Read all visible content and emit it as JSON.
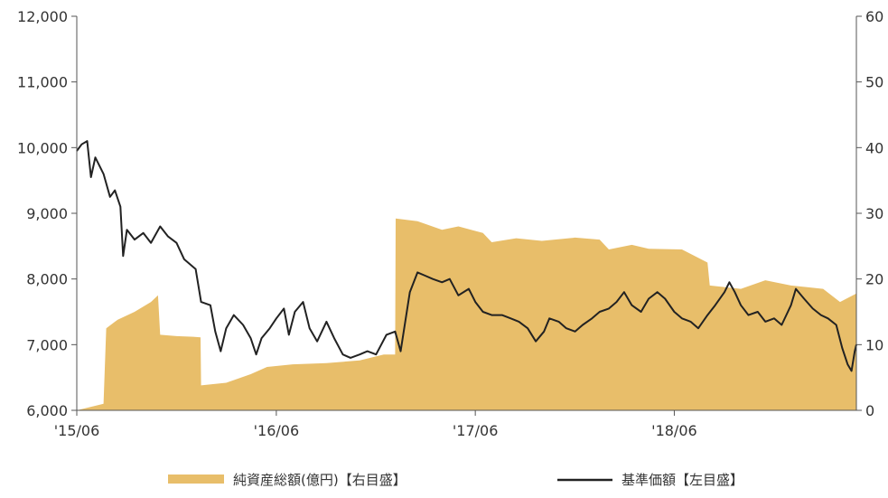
{
  "chart_data": {
    "type": "area+line",
    "title": "",
    "xlabel": "",
    "ylabel_left": "",
    "ylabel_right": "",
    "x_ticks": [
      "'15/06",
      "'16/06",
      "'17/06",
      "'18/06"
    ],
    "left_axis": {
      "ticks": [
        "6,000",
        "7,000",
        "8,000",
        "9,000",
        "10,000",
        "11,000",
        "12,000"
      ],
      "ylim": [
        6000,
        12000
      ]
    },
    "right_axis": {
      "ticks": [
        "0",
        "10",
        "20",
        "30",
        "40",
        "50",
        "60"
      ],
      "ylim": [
        0,
        60
      ]
    },
    "grid": false,
    "legend_position": "bottom",
    "series": [
      {
        "name": "純資産総額(億円)【右目盛】",
        "kind": "area",
        "axis": "right",
        "color": "#E8BE6A",
        "points": [
          {
            "x": "2015-06-01",
            "y": 0
          },
          {
            "x": "2015-07-20",
            "y": 1
          },
          {
            "x": "2015-07-25",
            "y": 12.5
          },
          {
            "x": "2015-08-15",
            "y": 13.8
          },
          {
            "x": "2015-09-15",
            "y": 15
          },
          {
            "x": "2015-10-15",
            "y": 16.5
          },
          {
            "x": "2015-10-28",
            "y": 17.5
          },
          {
            "x": "2015-11-01",
            "y": 11.5
          },
          {
            "x": "2015-12-01",
            "y": 11.3
          },
          {
            "x": "2016-01-01",
            "y": 11.2
          },
          {
            "x": "2016-01-14",
            "y": 11.1
          },
          {
            "x": "2016-01-15",
            "y": 3.8
          },
          {
            "x": "2016-03-01",
            "y": 4.2
          },
          {
            "x": "2016-04-15",
            "y": 5.5
          },
          {
            "x": "2016-05-15",
            "y": 6.6
          },
          {
            "x": "2016-07-01",
            "y": 7
          },
          {
            "x": "2016-09-01",
            "y": 7.2
          },
          {
            "x": "2016-11-01",
            "y": 7.6
          },
          {
            "x": "2016-12-15",
            "y": 8.5
          },
          {
            "x": "2017-01-05",
            "y": 8.5
          },
          {
            "x": "2017-01-06",
            "y": 29.2
          },
          {
            "x": "2017-02-15",
            "y": 28.8
          },
          {
            "x": "2017-04-01",
            "y": 27.5
          },
          {
            "x": "2017-05-01",
            "y": 28
          },
          {
            "x": "2017-06-15",
            "y": 27
          },
          {
            "x": "2017-07-01",
            "y": 25.6
          },
          {
            "x": "2017-08-15",
            "y": 26.2
          },
          {
            "x": "2017-10-01",
            "y": 25.8
          },
          {
            "x": "2017-12-01",
            "y": 26.3
          },
          {
            "x": "2018-01-15",
            "y": 26
          },
          {
            "x": "2018-02-01",
            "y": 24.5
          },
          {
            "x": "2018-03-15",
            "y": 25.2
          },
          {
            "x": "2018-04-15",
            "y": 24.6
          },
          {
            "x": "2018-06-15",
            "y": 24.5
          },
          {
            "x": "2018-08-01",
            "y": 22.5
          },
          {
            "x": "2018-08-05",
            "y": 19
          },
          {
            "x": "2018-10-01",
            "y": 18.5
          },
          {
            "x": "2018-11-15",
            "y": 19.8
          },
          {
            "x": "2019-01-01",
            "y": 19
          },
          {
            "x": "2019-03-01",
            "y": 18.5
          },
          {
            "x": "2019-04-01",
            "y": 16.5
          },
          {
            "x": "2019-05-01",
            "y": 17.8
          }
        ]
      },
      {
        "name": "基準価額【左目盛】",
        "kind": "line",
        "axis": "left",
        "color": "#222222",
        "points": [
          {
            "x": "2015-06-01",
            "y": 9950
          },
          {
            "x": "2015-06-10",
            "y": 10050
          },
          {
            "x": "2015-06-20",
            "y": 10100
          },
          {
            "x": "2015-06-27",
            "y": 9550
          },
          {
            "x": "2015-07-05",
            "y": 9850
          },
          {
            "x": "2015-07-20",
            "y": 9600
          },
          {
            "x": "2015-08-01",
            "y": 9250
          },
          {
            "x": "2015-08-10",
            "y": 9350
          },
          {
            "x": "2015-08-20",
            "y": 9100
          },
          {
            "x": "2015-08-25",
            "y": 8350
          },
          {
            "x": "2015-09-01",
            "y": 8750
          },
          {
            "x": "2015-09-15",
            "y": 8600
          },
          {
            "x": "2015-10-01",
            "y": 8700
          },
          {
            "x": "2015-10-15",
            "y": 8550
          },
          {
            "x": "2015-11-01",
            "y": 8800
          },
          {
            "x": "2015-11-15",
            "y": 8650
          },
          {
            "x": "2015-12-01",
            "y": 8550
          },
          {
            "x": "2015-12-15",
            "y": 8300
          },
          {
            "x": "2016-01-05",
            "y": 8150
          },
          {
            "x": "2016-01-15",
            "y": 7650
          },
          {
            "x": "2016-02-01",
            "y": 7600
          },
          {
            "x": "2016-02-10",
            "y": 7200
          },
          {
            "x": "2016-02-20",
            "y": 6900
          },
          {
            "x": "2016-03-01",
            "y": 7250
          },
          {
            "x": "2016-03-15",
            "y": 7450
          },
          {
            "x": "2016-04-01",
            "y": 7300
          },
          {
            "x": "2016-04-15",
            "y": 7100
          },
          {
            "x": "2016-04-25",
            "y": 6850
          },
          {
            "x": "2016-05-05",
            "y": 7100
          },
          {
            "x": "2016-05-20",
            "y": 7250
          },
          {
            "x": "2016-06-01",
            "y": 7400
          },
          {
            "x": "2016-06-15",
            "y": 7550
          },
          {
            "x": "2016-06-24",
            "y": 7150
          },
          {
            "x": "2016-07-05",
            "y": 7500
          },
          {
            "x": "2016-07-20",
            "y": 7650
          },
          {
            "x": "2016-08-01",
            "y": 7250
          },
          {
            "x": "2016-08-15",
            "y": 7050
          },
          {
            "x": "2016-09-01",
            "y": 7350
          },
          {
            "x": "2016-09-15",
            "y": 7100
          },
          {
            "x": "2016-10-01",
            "y": 6850
          },
          {
            "x": "2016-10-15",
            "y": 6800
          },
          {
            "x": "2016-11-01",
            "y": 6850
          },
          {
            "x": "2016-11-15",
            "y": 6900
          },
          {
            "x": "2016-12-01",
            "y": 6850
          },
          {
            "x": "2016-12-20",
            "y": 7150
          },
          {
            "x": "2017-01-05",
            "y": 7200
          },
          {
            "x": "2017-01-15",
            "y": 6900
          },
          {
            "x": "2017-02-01",
            "y": 7800
          },
          {
            "x": "2017-02-15",
            "y": 8100
          },
          {
            "x": "2017-03-01",
            "y": 8050
          },
          {
            "x": "2017-03-15",
            "y": 8000
          },
          {
            "x": "2017-04-01",
            "y": 7950
          },
          {
            "x": "2017-04-15",
            "y": 8000
          },
          {
            "x": "2017-05-01",
            "y": 7750
          },
          {
            "x": "2017-05-20",
            "y": 7850
          },
          {
            "x": "2017-06-01",
            "y": 7650
          },
          {
            "x": "2017-06-15",
            "y": 7500
          },
          {
            "x": "2017-07-01",
            "y": 7450
          },
          {
            "x": "2017-07-20",
            "y": 7450
          },
          {
            "x": "2017-08-05",
            "y": 7400
          },
          {
            "x": "2017-08-20",
            "y": 7350
          },
          {
            "x": "2017-09-05",
            "y": 7250
          },
          {
            "x": "2017-09-20",
            "y": 7050
          },
          {
            "x": "2017-10-05",
            "y": 7200
          },
          {
            "x": "2017-10-15",
            "y": 7400
          },
          {
            "x": "2017-11-01",
            "y": 7350
          },
          {
            "x": "2017-11-15",
            "y": 7250
          },
          {
            "x": "2017-12-01",
            "y": 7200
          },
          {
            "x": "2017-12-15",
            "y": 7300
          },
          {
            "x": "2018-01-01",
            "y": 7400
          },
          {
            "x": "2018-01-15",
            "y": 7500
          },
          {
            "x": "2018-02-01",
            "y": 7550
          },
          {
            "x": "2018-02-15",
            "y": 7650
          },
          {
            "x": "2018-03-01",
            "y": 7800
          },
          {
            "x": "2018-03-15",
            "y": 7600
          },
          {
            "x": "2018-04-01",
            "y": 7500
          },
          {
            "x": "2018-04-15",
            "y": 7700
          },
          {
            "x": "2018-05-01",
            "y": 7800
          },
          {
            "x": "2018-05-15",
            "y": 7700
          },
          {
            "x": "2018-06-01",
            "y": 7500
          },
          {
            "x": "2018-06-15",
            "y": 7400
          },
          {
            "x": "2018-07-01",
            "y": 7350
          },
          {
            "x": "2018-07-15",
            "y": 7250
          },
          {
            "x": "2018-08-01",
            "y": 7450
          },
          {
            "x": "2018-08-15",
            "y": 7600
          },
          {
            "x": "2018-09-01",
            "y": 7800
          },
          {
            "x": "2018-09-10",
            "y": 7950
          },
          {
            "x": "2018-09-20",
            "y": 7800
          },
          {
            "x": "2018-10-01",
            "y": 7600
          },
          {
            "x": "2018-10-15",
            "y": 7450
          },
          {
            "x": "2018-11-01",
            "y": 7500
          },
          {
            "x": "2018-11-15",
            "y": 7350
          },
          {
            "x": "2018-12-01",
            "y": 7400
          },
          {
            "x": "2018-12-15",
            "y": 7300
          },
          {
            "x": "2019-01-01",
            "y": 7600
          },
          {
            "x": "2019-01-10",
            "y": 7850
          },
          {
            "x": "2019-01-25",
            "y": 7700
          },
          {
            "x": "2019-02-10",
            "y": 7550
          },
          {
            "x": "2019-02-25",
            "y": 7450
          },
          {
            "x": "2019-03-10",
            "y": 7400
          },
          {
            "x": "2019-03-25",
            "y": 7300
          },
          {
            "x": "2019-04-05",
            "y": 6950
          },
          {
            "x": "2019-04-15",
            "y": 6700
          },
          {
            "x": "2019-04-22",
            "y": 6600
          },
          {
            "x": "2019-04-28",
            "y": 6900
          },
          {
            "x": "2019-05-01",
            "y": 7000
          }
        ]
      }
    ],
    "x_range": [
      "2015-06-01",
      "2019-05-01"
    ],
    "x_tick_dates": [
      "2015-06-01",
      "2016-06-01",
      "2017-06-01",
      "2018-06-01"
    ]
  },
  "legend": {
    "items": [
      {
        "label": "純資産総額(億円)【右目盛】",
        "swatch": "area",
        "color": "#E8BE6A"
      },
      {
        "label": "基準価額【左目盛】",
        "swatch": "line",
        "color": "#222222"
      }
    ]
  }
}
